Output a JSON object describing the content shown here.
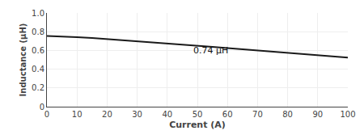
{
  "chart_data": {
    "type": "line",
    "xlabel": "Current (A)",
    "ylabel": "Inductance (μH)",
    "x": [
      0,
      5,
      10,
      15,
      20,
      25,
      30,
      35,
      40,
      45,
      50,
      55,
      60,
      65,
      70,
      75,
      80,
      85,
      90,
      95,
      100
    ],
    "values": [
      0.755,
      0.75,
      0.742,
      0.733,
      0.722,
      0.711,
      0.699,
      0.688,
      0.677,
      0.664,
      0.652,
      0.639,
      0.626,
      0.614,
      0.601,
      0.588,
      0.575,
      0.562,
      0.549,
      0.536,
      0.524
    ],
    "color": "#1a1a1a",
    "xlim": [
      0,
      100
    ],
    "ylim": [
      0,
      1.0
    ],
    "xticks": [
      0,
      10,
      20,
      30,
      40,
      50,
      60,
      70,
      80,
      90,
      100
    ],
    "yticks": [
      0,
      0.2,
      0.4,
      0.6,
      0.8,
      {
        "value": 1.0,
        "label": "1.0"
      }
    ],
    "grid": true,
    "annotations": [
      {
        "text": "0.74 μH",
        "x": 48,
        "y": 0.595
      }
    ]
  }
}
